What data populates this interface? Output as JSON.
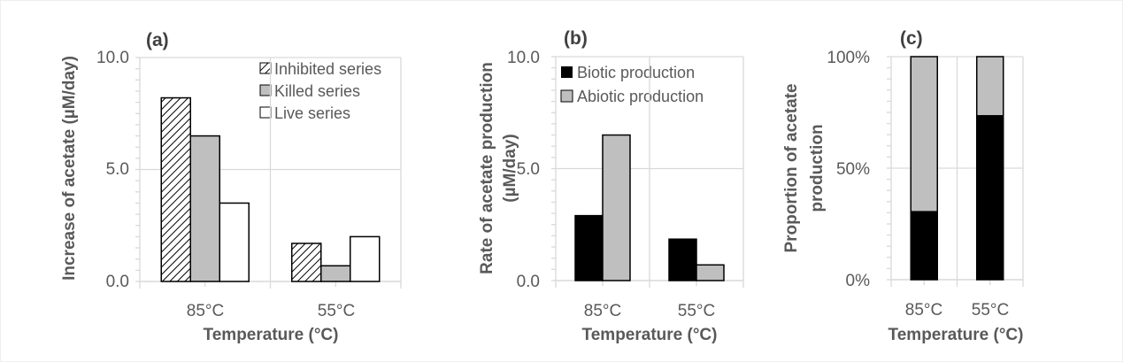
{
  "chart_data": [
    {
      "type": "bar",
      "panel_label": "(a)",
      "categories": [
        "85°C",
        "55°C"
      ],
      "xlabel": "Temperature (°C)",
      "ylabel": "Increase of acetate (µM/day)",
      "ylim": [
        0,
        10
      ],
      "yticks": [
        "0.0",
        "5.0",
        "10.0"
      ],
      "grid": true,
      "legend": "top-right",
      "series": [
        {
          "name": "Inhibited series",
          "values": [
            8.2,
            1.7
          ],
          "color": "#ffffff",
          "pattern": "diagonal-hatch"
        },
        {
          "name": "Killed series",
          "values": [
            6.5,
            0.7
          ],
          "color": "#bfbfbf"
        },
        {
          "name": "Live series",
          "values": [
            3.5,
            2.0
          ],
          "color": "#ffffff"
        }
      ]
    },
    {
      "type": "bar",
      "panel_label": "(b)",
      "categories": [
        "85°C",
        "55°C"
      ],
      "xlabel": "Temperature (°C)",
      "ylabel": [
        "Rate of acetate production",
        "(µM/day)"
      ],
      "ylim": [
        0,
        10
      ],
      "yticks": [
        "0.0",
        "5.0",
        "10.0"
      ],
      "grid": true,
      "legend": "top-left",
      "series": [
        {
          "name": "Biotic production",
          "values": [
            2.9,
            1.85
          ],
          "color": "#000000"
        },
        {
          "name": "Abiotic production",
          "values": [
            6.5,
            0.7
          ],
          "color": "#bfbfbf"
        }
      ]
    },
    {
      "type": "bar",
      "stacked": true,
      "panel_label": "(c)",
      "categories": [
        "85°C",
        "55°C"
      ],
      "xlabel": "Temperature (°C)",
      "ylabel": [
        "Proportion of acetate",
        "production"
      ],
      "ylim": [
        0,
        100
      ],
      "yticks": [
        "0%",
        "50%",
        "100%"
      ],
      "grid": true,
      "series": [
        {
          "values": [
            30.5,
            73.5
          ],
          "color": "#000000"
        },
        {
          "values": [
            69.5,
            26.5
          ],
          "color": "#bfbfbf"
        }
      ]
    }
  ]
}
